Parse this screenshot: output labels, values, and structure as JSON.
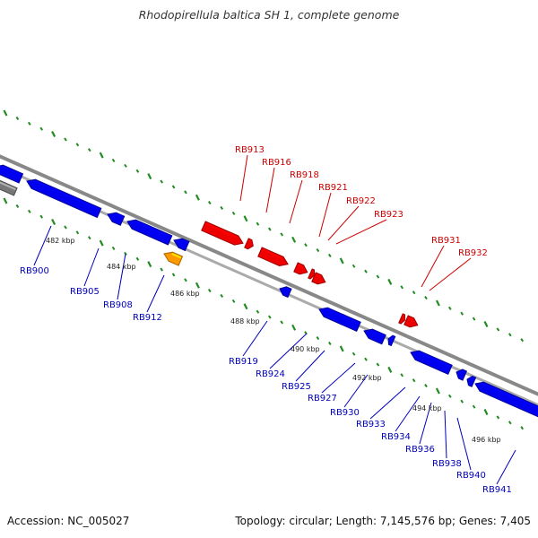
{
  "title": "Rhodopirellula baltica SH 1, complete genome",
  "footer": {
    "accession": "Accession: NC_005027",
    "summary": "Topology: circular; Length: 7,145,576 bp; Genes: 7,405"
  },
  "colors": {
    "forward_gene": "#ee0000",
    "reverse_gene": "#0000ee",
    "highlight_gene": "#ff9900",
    "backbone": "#888888",
    "tick": "#228b22",
    "label_forward": "#cc0000",
    "label_reverse": "#0000bb"
  },
  "scale_labels": [
    "482 kbp",
    "484 kbp",
    "486 kbp",
    "488 kbp",
    "490 kbp",
    "492 kbp",
    "494 kbp",
    "496 kbp"
  ],
  "forward_labels": [
    "RB913",
    "RB916",
    "RB918",
    "RB921",
    "RB922",
    "RB923",
    "RB931",
    "RB932"
  ],
  "reverse_labels": [
    "RB900",
    "RB905",
    "RB908",
    "RB912",
    "RB919",
    "RB924",
    "RB925",
    "RB927",
    "RB930",
    "RB933",
    "RB934",
    "RB936",
    "RB938",
    "RB940",
    "RB941"
  ]
}
